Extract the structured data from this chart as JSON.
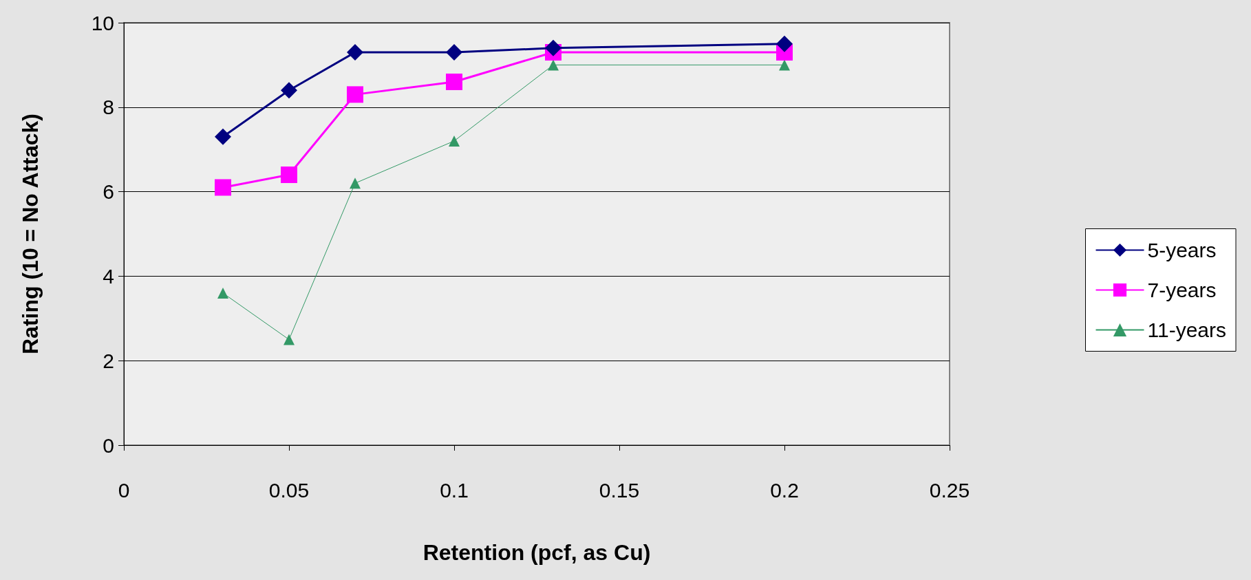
{
  "chart_data": {
    "type": "line",
    "xlabel": "Retention (pcf, as Cu)",
    "ylabel": "Rating (10 = No Attack)",
    "x": [
      0.03,
      0.05,
      0.07,
      0.1,
      0.13,
      0.2
    ],
    "series": [
      {
        "name": "5-years",
        "color": "#000080",
        "marker": "diamond",
        "values": [
          7.3,
          8.4,
          9.3,
          9.3,
          9.4,
          9.5
        ]
      },
      {
        "name": "7-years",
        "color": "#ff00ff",
        "marker": "square",
        "values": [
          6.1,
          6.4,
          8.3,
          8.6,
          9.3,
          9.3
        ]
      },
      {
        "name": "11-years",
        "color": "#339966",
        "marker": "triangle",
        "values": [
          3.6,
          2.5,
          6.2,
          7.2,
          9.0,
          9.0
        ]
      }
    ],
    "xlim": [
      0,
      0.25
    ],
    "xticks": [
      0,
      0.05,
      0.1,
      0.15,
      0.2,
      0.25
    ],
    "ylim": [
      0,
      10
    ],
    "yticks": [
      0,
      2,
      4,
      6,
      8,
      10
    ],
    "grid": "y",
    "legend": "right",
    "line_style": "solid"
  }
}
